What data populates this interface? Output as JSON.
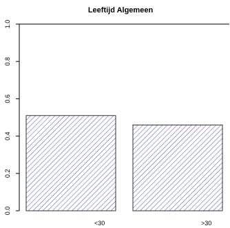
{
  "chart_data": {
    "type": "bar",
    "title": "Leeftijd Algemeen",
    "categories": [
      "<30",
      ">30"
    ],
    "values": [
      0.51,
      0.46
    ],
    "ylim": [
      0,
      1
    ],
    "yticks": [
      "0.0",
      "0.2",
      "0.4",
      "0.6",
      "0.8",
      "1.0"
    ],
    "xlabel": "",
    "ylabel": "",
    "grid": false,
    "bar_fill": "hatched",
    "hatch_color": "#3b3bb0",
    "frame_color": "#000000"
  }
}
